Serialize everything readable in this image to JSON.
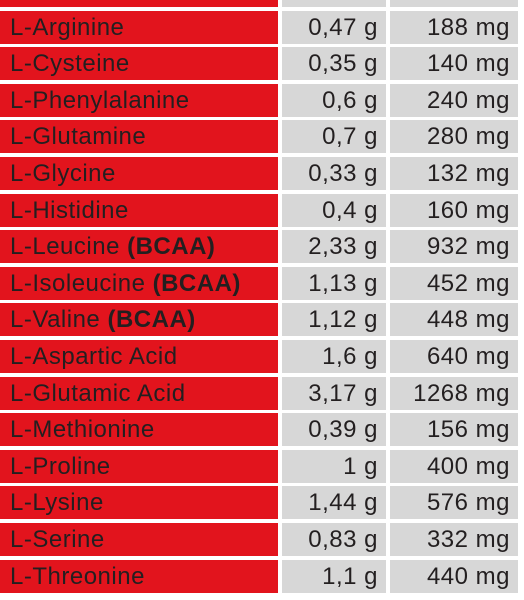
{
  "table": {
    "rows": [
      {
        "name": "L-Arginine",
        "grams": "0,47 g",
        "mg": "188 mg"
      },
      {
        "name": "L-Cysteine",
        "grams": "0,35 g",
        "mg": "140 mg"
      },
      {
        "name": "L-Phenylalanine",
        "grams": "0,6 g",
        "mg": "240 mg"
      },
      {
        "name": "L-Glutamine",
        "grams": "0,7 g",
        "mg": "280 mg"
      },
      {
        "name": "L-Glycine",
        "grams": "0,33 g",
        "mg": "132 mg"
      },
      {
        "name": "L-Histidine",
        "grams": "0,4 g",
        "mg": "160 mg"
      },
      {
        "name": "L-Leucine",
        "tag": "(BCAA)",
        "grams": "2,33 g",
        "mg": "932 mg"
      },
      {
        "name": "L-Isoleucine",
        "tag": "(BCAA)",
        "grams": "1,13 g",
        "mg": "452 mg"
      },
      {
        "name": "L-Valine",
        "tag": "(BCAA)",
        "grams": "1,12 g",
        "mg": "448 mg"
      },
      {
        "name": "L-Aspartic Acid",
        "grams": "1,6 g",
        "mg": "640 mg"
      },
      {
        "name": "L-Glutamic Acid",
        "grams": "3,17 g",
        "mg": "1268 mg"
      },
      {
        "name": "L-Methionine",
        "grams": "0,39 g",
        "mg": "156 mg"
      },
      {
        "name": "L-Proline",
        "grams": "1 g",
        "mg": "400 mg"
      },
      {
        "name": "L-Lysine",
        "grams": "1,44 g",
        "mg": "576 mg"
      },
      {
        "name": "L-Serine",
        "grams": "0,83 g",
        "mg": "332 mg"
      },
      {
        "name": "L-Threonine",
        "grams": "1,1 g",
        "mg": "440 mg"
      }
    ]
  }
}
